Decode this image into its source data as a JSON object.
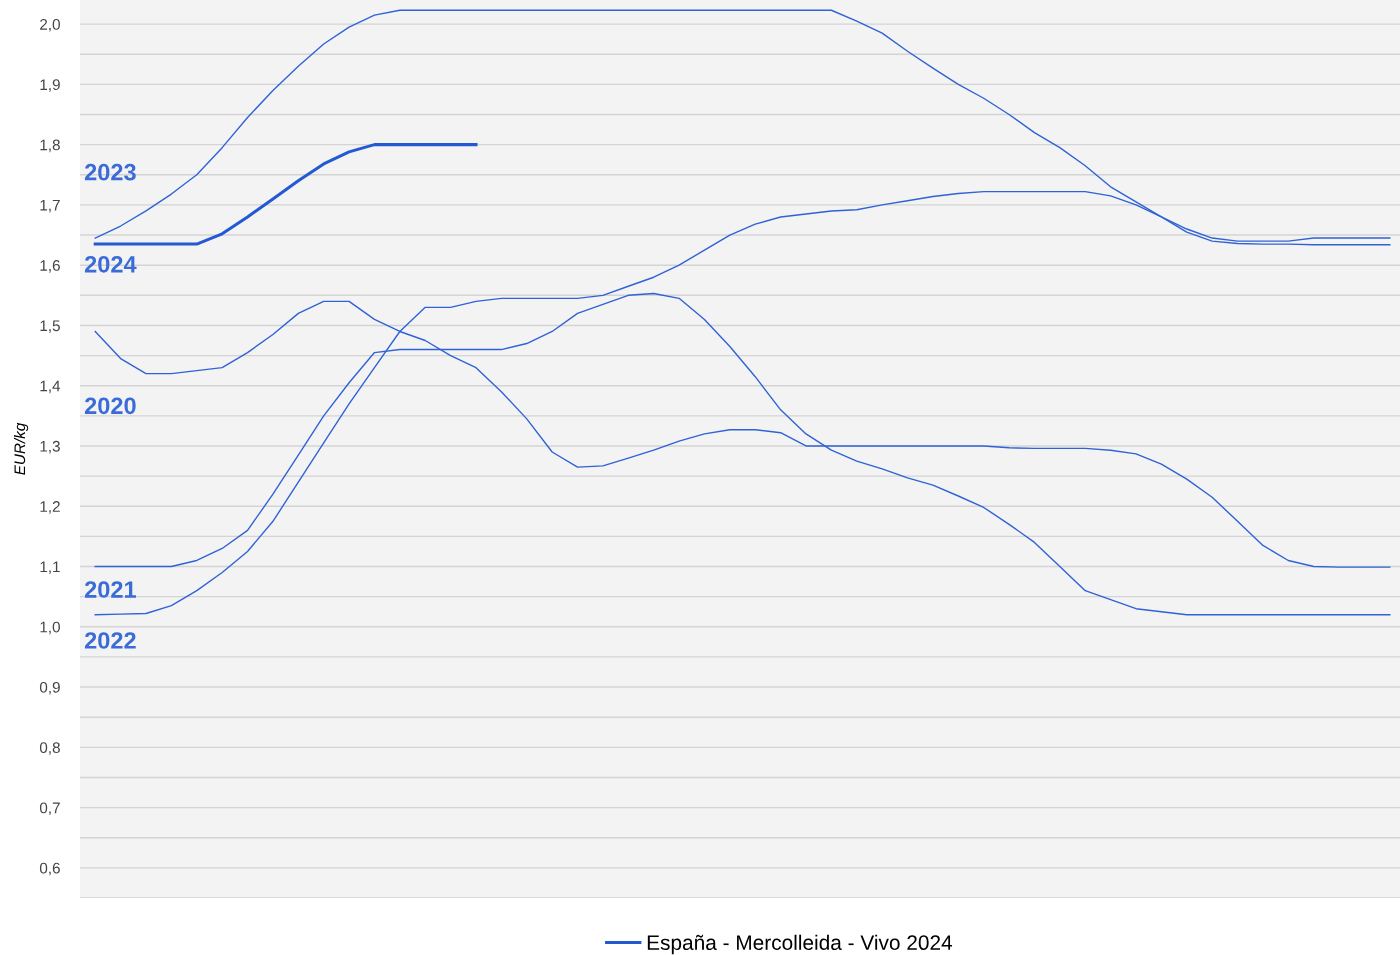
{
  "chart_data": {
    "type": "line",
    "ylabel": "EUR/kg",
    "categories": [
      null,
      null,
      null,
      null,
      null,
      null,
      null,
      null,
      null,
      null,
      null,
      null,
      null,
      null,
      null,
      null,
      null,
      null,
      null,
      null,
      null,
      null,
      null,
      null,
      null,
      null,
      null,
      null,
      null,
      null,
      null,
      null,
      null,
      null,
      null,
      null,
      null,
      null,
      null,
      null,
      null,
      null,
      null,
      null,
      null,
      null,
      null,
      null,
      null,
      null,
      null,
      null
    ],
    "series": [
      {
        "name": "2020",
        "color": "#2f62d6",
        "values": [
          1.49,
          1.445,
          1.42,
          1.42,
          1.425,
          1.43,
          1.455,
          1.485,
          1.52,
          1.54,
          1.54,
          1.51,
          1.49,
          1.475,
          1.45,
          1.43,
          1.39,
          1.345,
          1.29,
          1.265,
          1.267,
          1.28,
          1.293,
          1.308,
          1.32,
          1.327,
          1.327,
          1.322,
          1.3,
          1.3,
          1.3,
          1.3,
          1.3,
          1.3,
          1.3,
          1.3,
          1.297,
          1.296,
          1.296,
          1.296,
          1.293,
          1.287,
          1.27,
          1.245,
          1.215,
          1.175,
          1.135,
          1.11,
          1.1,
          1.099,
          1.099,
          1.099
        ]
      },
      {
        "name": "2021",
        "color": "#2f62d6",
        "values": [
          1.1,
          1.1,
          1.1,
          1.1,
          1.11,
          1.13,
          1.16,
          1.22,
          1.285,
          1.35,
          1.405,
          1.455,
          1.46,
          1.46,
          1.46,
          1.46,
          1.46,
          1.47,
          1.49,
          1.52,
          1.535,
          1.55,
          1.553,
          1.545,
          1.51,
          1.465,
          1.415,
          1.36,
          1.32,
          1.293,
          1.275,
          1.262,
          1.247,
          1.235,
          1.217,
          1.198,
          1.17,
          1.14,
          1.1,
          1.06,
          1.045,
          1.03,
          1.025,
          1.02,
          1.02,
          1.02,
          1.02,
          1.02,
          1.02,
          1.02,
          1.02,
          1.02
        ]
      },
      {
        "name": "2022",
        "color": "#2f62d6",
        "values": [
          1.02,
          1.021,
          1.022,
          1.035,
          1.06,
          1.09,
          1.125,
          1.175,
          1.24,
          1.305,
          1.37,
          1.43,
          1.49,
          1.53,
          1.53,
          1.54,
          1.545,
          1.545,
          1.545,
          1.545,
          1.55,
          1.565,
          1.58,
          1.6,
          1.625,
          1.65,
          1.668,
          1.68,
          1.685,
          1.69,
          1.692,
          1.7,
          1.707,
          1.714,
          1.719,
          1.722,
          1.722,
          1.722,
          1.722,
          1.722,
          1.715,
          1.7,
          1.68,
          1.66,
          1.645,
          1.64,
          1.64,
          1.64,
          1.645,
          1.645,
          1.645,
          1.645
        ]
      },
      {
        "name": "2023",
        "color": "#2f62d6",
        "values": [
          1.645,
          1.665,
          1.69,
          1.718,
          1.75,
          1.795,
          1.845,
          1.89,
          1.93,
          1.967,
          1.995,
          2.015,
          2.023,
          2.023,
          2.023,
          2.023,
          2.023,
          2.023,
          2.023,
          2.023,
          2.023,
          2.023,
          2.023,
          2.023,
          2.023,
          2.023,
          2.023,
          2.023,
          2.023,
          2.023,
          2.005,
          1.985,
          1.955,
          1.927,
          1.9,
          1.877,
          1.85,
          1.82,
          1.795,
          1.765,
          1.73,
          1.705,
          1.68,
          1.655,
          1.64,
          1.636,
          1.635,
          1.635,
          1.634,
          1.634,
          1.634,
          1.634
        ]
      },
      {
        "name": "España - Mercolleida - Vivo 2024",
        "color": "#2459d4",
        "values": [
          1.635,
          1.635,
          1.635,
          1.635,
          1.635,
          1.652,
          1.68,
          1.71,
          1.74,
          1.768,
          1.788,
          1.8,
          1.8,
          1.8,
          1.8,
          1.8,
          null,
          null,
          null,
          null,
          null,
          null,
          null,
          null,
          null,
          null,
          null,
          null,
          null,
          null,
          null,
          null,
          null,
          null,
          null,
          null,
          null,
          null,
          null,
          null,
          null,
          null,
          null,
          null,
          null,
          null,
          null,
          null,
          null,
          null,
          null,
          null
        ]
      }
    ],
    "annotations": [
      "2024"
    ],
    "ylim": [
      0.55,
      2.04
    ],
    "yticks": [
      {
        "value": 0.55,
        "label": null
      },
      {
        "value": 0.6,
        "label": "0,6"
      },
      {
        "value": 0.65,
        "label": null
      },
      {
        "value": 0.7,
        "label": "0,7"
      },
      {
        "value": 0.75,
        "label": null
      },
      {
        "value": 0.8,
        "label": "0,8"
      },
      {
        "value": 0.85,
        "label": null
      },
      {
        "value": 0.9,
        "label": "0,9"
      },
      {
        "value": 0.95,
        "label": null
      },
      {
        "value": 1.0,
        "label": "1,0"
      },
      {
        "value": 1.05,
        "label": null
      },
      {
        "value": 1.1,
        "label": "1,1"
      },
      {
        "value": 1.15,
        "label": null
      },
      {
        "value": 1.2,
        "label": "1,2"
      },
      {
        "value": 1.25,
        "label": null
      },
      {
        "value": 1.3,
        "label": "1,3"
      },
      {
        "value": 1.35,
        "label": null
      },
      {
        "value": 1.4,
        "label": "1,4"
      },
      {
        "value": 1.45,
        "label": null
      },
      {
        "value": 1.5,
        "label": "1,5"
      },
      {
        "value": 1.55,
        "label": null
      },
      {
        "value": 1.6,
        "label": "1,6"
      },
      {
        "value": 1.65,
        "label": null
      },
      {
        "value": 1.7,
        "label": "1,7"
      },
      {
        "value": 1.75,
        "label": null
      },
      {
        "value": 1.8,
        "label": "1,8"
      },
      {
        "value": 1.85,
        "label": null
      },
      {
        "value": 1.9,
        "label": "1,9"
      },
      {
        "value": 1.95,
        "label": null
      },
      {
        "value": 2.0,
        "label": "2,0"
      }
    ],
    "grid": "y",
    "legend": "bottom",
    "marker": "none",
    "line_style": "solid"
  }
}
